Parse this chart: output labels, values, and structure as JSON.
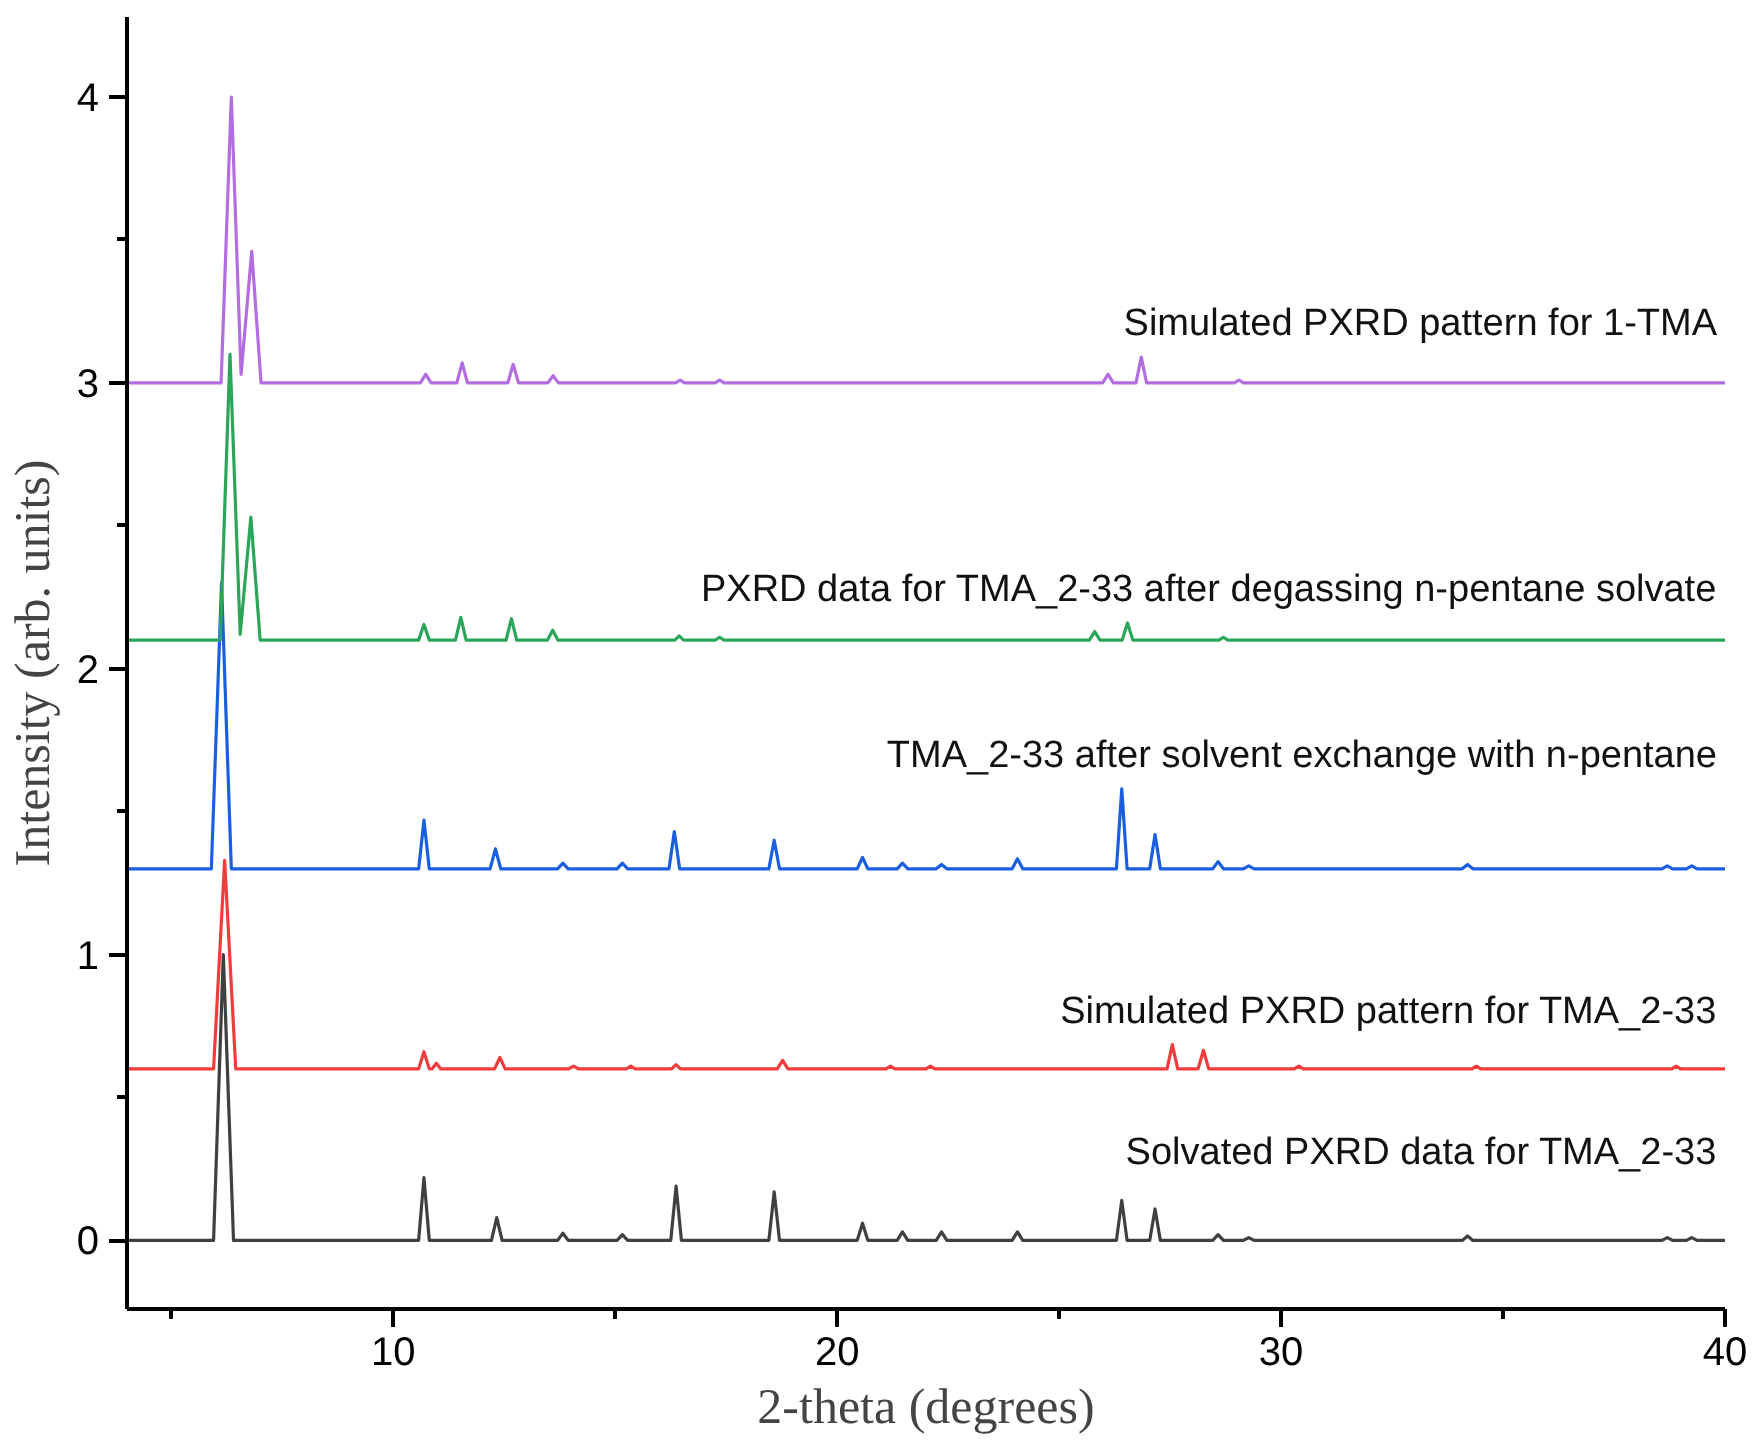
{
  "chart_data": {
    "type": "line",
    "xlabel": "2-theta (degrees)",
    "ylabel": "Intensity (arb. units)",
    "xlim": [
      4,
      40
    ],
    "xticks": [
      {
        "value": 5,
        "label": null
      },
      10,
      {
        "value": 15,
        "label": null
      },
      20,
      {
        "value": 25,
        "label": null
      },
      30,
      {
        "value": 35,
        "label": null
      },
      40
    ],
    "ylim": [
      -0.24,
      4.28
    ],
    "yticks": [
      0,
      {
        "value": 0.5,
        "label": null
      },
      1,
      {
        "value": 1.5,
        "label": null
      },
      2,
      {
        "value": 2.5,
        "label": null
      },
      3,
      {
        "value": 3.5,
        "label": null
      },
      4
    ],
    "grid": false,
    "marker": "none",
    "line_style": "solid",
    "series": [
      {
        "name": "Solvated PXRD data for TMA_2-33",
        "color": "#404040",
        "x": [
          4,
          5.95,
          6.17,
          6.4,
          10.57,
          10.69,
          10.81,
          12.21,
          12.33,
          12.45,
          13.7,
          13.82,
          13.94,
          15.04,
          15.16,
          15.28,
          16.25,
          16.37,
          16.49,
          18.46,
          18.58,
          18.7,
          20.45,
          20.57,
          20.69,
          21.35,
          21.47,
          21.59,
          22.23,
          22.35,
          22.47,
          23.94,
          24.06,
          24.18,
          26.29,
          26.41,
          26.53,
          27.04,
          27.16,
          27.28,
          28.46,
          28.58,
          28.7,
          29.15,
          29.27,
          29.39,
          34.08,
          34.2,
          34.32,
          38.58,
          38.7,
          38.82,
          39.13,
          39.25,
          39.37,
          40
        ],
        "values": [
          0,
          0,
          1.0,
          0,
          0,
          0.22,
          0,
          0,
          0.08,
          0,
          0,
          0.025,
          0,
          0,
          0.02,
          0,
          0,
          0.19,
          0,
          0,
          0.17,
          0,
          0,
          0.06,
          0,
          0,
          0.03,
          0,
          0,
          0.03,
          0,
          0,
          0.03,
          0,
          0,
          0.14,
          0,
          0,
          0.11,
          0,
          0,
          0.02,
          0,
          0,
          0.01,
          0,
          0,
          0.015,
          0,
          0,
          0.01,
          0,
          0,
          0.01,
          0,
          0
        ]
      },
      {
        "name": "Simulated PXRD pattern for TMA_2-33",
        "color": "#f03c3c",
        "x": [
          4,
          5.95,
          6.2,
          6.45,
          10.57,
          10.69,
          10.81,
          10.87,
          10.97,
          11.07,
          12.28,
          12.4,
          12.52,
          13.95,
          14.06,
          14.17,
          15.25,
          15.35,
          15.45,
          16.27,
          16.37,
          16.47,
          18.65,
          18.77,
          18.89,
          21.1,
          21.2,
          21.3,
          22.0,
          22.1,
          22.2,
          27.43,
          27.55,
          27.67,
          28.13,
          28.25,
          28.37,
          30.3,
          30.4,
          30.5,
          34.3,
          34.4,
          34.5,
          38.8,
          38.9,
          39.0,
          40
        ],
        "values": [
          0.6,
          0.6,
          1.33,
          0.6,
          0.6,
          0.66,
          0.6,
          0.6,
          0.62,
          0.6,
          0.6,
          0.64,
          0.6,
          0.6,
          0.61,
          0.6,
          0.6,
          0.61,
          0.6,
          0.6,
          0.615,
          0.6,
          0.6,
          0.63,
          0.6,
          0.6,
          0.61,
          0.6,
          0.6,
          0.61,
          0.6,
          0.6,
          0.685,
          0.6,
          0.6,
          0.665,
          0.6,
          0.6,
          0.61,
          0.6,
          0.6,
          0.61,
          0.6,
          0.6,
          0.61,
          0.6,
          0.6
        ]
      },
      {
        "name": "TMA_2-33 after solvent exchange with n-pentane",
        "color": "#1a5fe0",
        "x": [
          4,
          5.9,
          6.13,
          6.35,
          10.57,
          10.69,
          10.81,
          12.18,
          12.3,
          12.42,
          13.7,
          13.82,
          13.94,
          15.04,
          15.16,
          15.28,
          16.21,
          16.33,
          16.45,
          18.46,
          18.58,
          18.7,
          20.45,
          20.57,
          20.69,
          21.35,
          21.47,
          21.59,
          22.23,
          22.35,
          22.47,
          23.94,
          24.06,
          24.18,
          26.29,
          26.41,
          26.53,
          27.04,
          27.16,
          27.28,
          28.46,
          28.58,
          28.7,
          29.15,
          29.27,
          29.39,
          34.08,
          34.2,
          34.32,
          38.58,
          38.7,
          38.82,
          39.13,
          39.25,
          39.37,
          40
        ],
        "values": [
          1.3,
          1.3,
          2.3,
          1.3,
          1.3,
          1.47,
          1.3,
          1.3,
          1.37,
          1.3,
          1.3,
          1.32,
          1.3,
          1.3,
          1.32,
          1.3,
          1.3,
          1.43,
          1.3,
          1.3,
          1.4,
          1.3,
          1.3,
          1.34,
          1.3,
          1.3,
          1.32,
          1.3,
          1.3,
          1.315,
          1.3,
          1.3,
          1.335,
          1.3,
          1.3,
          1.58,
          1.3,
          1.3,
          1.42,
          1.3,
          1.3,
          1.325,
          1.3,
          1.3,
          1.31,
          1.3,
          1.3,
          1.315,
          1.3,
          1.3,
          1.31,
          1.3,
          1.3,
          1.31,
          1.3,
          1.3
        ]
      },
      {
        "name": "PXRD data for TMA_2-33 after degassing n-pentane solvate",
        "color": "#2aa55a",
        "x": [
          4,
          6.1,
          6.32,
          6.55,
          6.79,
          7.0,
          10.57,
          10.69,
          10.81,
          11.4,
          11.52,
          11.64,
          12.54,
          12.66,
          12.78,
          13.47,
          13.59,
          13.71,
          16.34,
          16.44,
          16.54,
          17.25,
          17.35,
          17.45,
          25.68,
          25.8,
          25.92,
          26.42,
          26.54,
          26.66,
          28.6,
          28.7,
          28.8,
          40
        ],
        "values": [
          2.1,
          2.1,
          3.1,
          2.12,
          2.53,
          2.1,
          2.1,
          2.155,
          2.1,
          2.1,
          2.18,
          2.1,
          2.1,
          2.175,
          2.1,
          2.1,
          2.135,
          2.1,
          2.1,
          2.115,
          2.1,
          2.1,
          2.11,
          2.1,
          2.1,
          2.13,
          2.1,
          2.1,
          2.16,
          2.1,
          2.1,
          2.11,
          2.1,
          2.1
        ]
      },
      {
        "name": "Simulated PXRD pattern for 1-TMA",
        "color": "#b26ee0",
        "x": [
          4,
          6.12,
          6.35,
          6.57,
          6.81,
          7.02,
          10.61,
          10.73,
          10.85,
          11.43,
          11.55,
          11.67,
          12.58,
          12.7,
          12.82,
          13.48,
          13.6,
          13.72,
          16.36,
          16.46,
          16.56,
          17.25,
          17.35,
          17.45,
          25.98,
          26.1,
          26.22,
          26.73,
          26.85,
          26.97,
          28.95,
          29.05,
          29.15,
          40
        ],
        "values": [
          3.0,
          3.0,
          4.0,
          3.03,
          3.46,
          3.0,
          3.0,
          3.03,
          3.0,
          3.0,
          3.07,
          3.0,
          3.0,
          3.065,
          3.0,
          3.0,
          3.025,
          3.0,
          3.0,
          3.01,
          3.0,
          3.0,
          3.01,
          3.0,
          3.0,
          3.03,
          3.0,
          3.0,
          3.09,
          3.0,
          3.0,
          3.01,
          3.0,
          3.0
        ]
      }
    ]
  }
}
